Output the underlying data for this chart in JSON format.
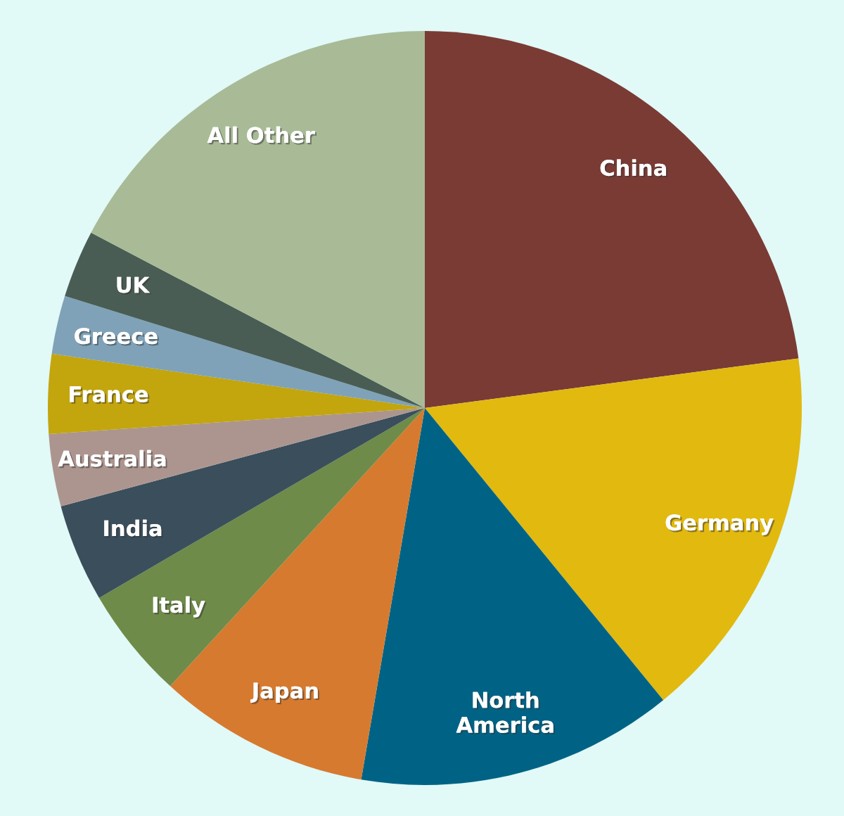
{
  "chart_data": {
    "type": "pie",
    "categories": [
      "China",
      "Germany",
      "North\nAmerica",
      "Japan",
      "Italy",
      "India",
      "Australia",
      "France",
      "Greece",
      "UK",
      "All Other"
    ],
    "values": [
      22.9,
      16.2,
      13.6,
      9.1,
      4.8,
      4.2,
      3.1,
      3.4,
      2.5,
      2.9,
      17.3
    ],
    "colors": [
      "#7a3b35",
      "#e2b90f",
      "#006385",
      "#d67a2f",
      "#6e8b49",
      "#3a4e5c",
      "#ad958f",
      "#c3a50e",
      "#7fa2b8",
      "#4a5d54",
      "#a8bb96"
    ],
    "legend": false
  }
}
